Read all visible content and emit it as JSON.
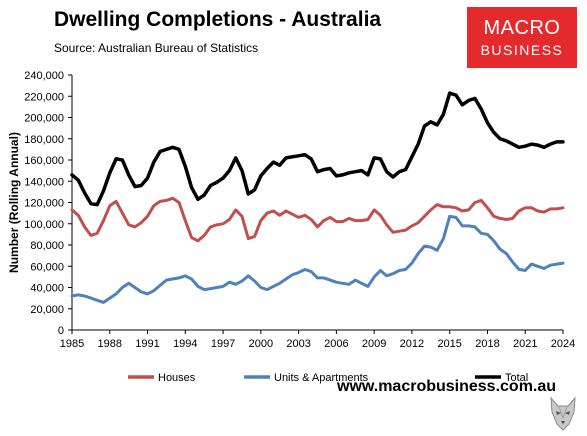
{
  "header": {
    "title": "Dwelling Completions - Australia",
    "subtitle": "Source: Australian Bureau of Statistics"
  },
  "logo": {
    "line1": "MACRO",
    "line2": "BUSINESS"
  },
  "footer": {
    "website": "www.macrobusiness.com.au"
  },
  "chart_data": {
    "type": "line",
    "title": "Dwelling Completions - Australia",
    "ylabel": "Number (Rolling Annual)",
    "xlabel": "",
    "xlim": [
      1985,
      2024
    ],
    "ylim": [
      0,
      240000
    ],
    "x_ticks": [
      1985,
      1988,
      1991,
      1994,
      1997,
      2000,
      2003,
      2006,
      2009,
      2012,
      2015,
      2018,
      2021,
      2024
    ],
    "y_ticks": [
      0,
      20000,
      40000,
      60000,
      80000,
      100000,
      120000,
      140000,
      160000,
      180000,
      200000,
      220000,
      240000
    ],
    "y_tick_labels": [
      "0",
      "20,000",
      "40,000",
      "60,000",
      "80,000",
      "100,000",
      "120,000",
      "140,000",
      "160,000",
      "180,000",
      "200,000",
      "220,000",
      "240,000"
    ],
    "grid": false,
    "legend_position": "bottom",
    "series": [
      {
        "name": "Houses",
        "color": "#c0504d",
        "x": [
          1985,
          1985.5,
          1986,
          1986.5,
          1987,
          1987.5,
          1988,
          1988.5,
          1989,
          1989.5,
          1990,
          1990.5,
          1991,
          1991.5,
          1992,
          1992.5,
          1993,
          1993.5,
          1994,
          1994.5,
          1995,
          1995.5,
          1996,
          1996.5,
          1997,
          1997.5,
          1998,
          1998.5,
          1999,
          1999.5,
          2000,
          2000.5,
          2001,
          2001.5,
          2002,
          2002.5,
          2003,
          2003.5,
          2004,
          2004.5,
          2005,
          2005.5,
          2006,
          2006.5,
          2007,
          2007.5,
          2008,
          2008.5,
          2009,
          2009.5,
          2010,
          2010.5,
          2011,
          2011.5,
          2012,
          2012.5,
          2013,
          2013.5,
          2014,
          2014.5,
          2015,
          2015.5,
          2016,
          2016.5,
          2017,
          2017.5,
          2018,
          2018.5,
          2019,
          2019.5,
          2020,
          2020.5,
          2021,
          2021.5,
          2022,
          2022.5,
          2023,
          2023.5,
          2024
        ],
        "values": [
          113000,
          108000,
          97000,
          89000,
          91000,
          103000,
          117000,
          121000,
          110000,
          99000,
          97000,
          101000,
          107000,
          117000,
          121000,
          122000,
          124000,
          120000,
          103000,
          87000,
          84000,
          89000,
          97000,
          99000,
          100000,
          104000,
          113000,
          107000,
          86000,
          88000,
          103000,
          110000,
          112000,
          108000,
          112000,
          109000,
          106000,
          108000,
          104000,
          97000,
          103000,
          106000,
          102000,
          102000,
          105000,
          103000,
          103000,
          104000,
          113000,
          108000,
          99000,
          92000,
          93000,
          94000,
          98000,
          101000,
          107000,
          113000,
          118000,
          116000,
          116000,
          115000,
          112000,
          113000,
          120000,
          122000,
          115000,
          107000,
          105000,
          104000,
          105000,
          112000,
          115000,
          115000,
          112000,
          111000,
          114000,
          114000,
          115000
        ]
      },
      {
        "name": "Units & Apartments",
        "color": "#4f81bd",
        "x": [
          1985,
          1985.5,
          1986,
          1986.5,
          1987,
          1987.5,
          1988,
          1988.5,
          1989,
          1989.5,
          1990,
          1990.5,
          1991,
          1991.5,
          1992,
          1992.5,
          1993,
          1993.5,
          1994,
          1994.5,
          1995,
          1995.5,
          1996,
          1996.5,
          1997,
          1997.5,
          1998,
          1998.5,
          1999,
          1999.5,
          2000,
          2000.5,
          2001,
          2001.5,
          2002,
          2002.5,
          2003,
          2003.5,
          2004,
          2004.5,
          2005,
          2005.5,
          2006,
          2006.5,
          2007,
          2007.5,
          2008,
          2008.5,
          2009,
          2009.5,
          2010,
          2010.5,
          2011,
          2011.5,
          2012,
          2012.5,
          2013,
          2013.5,
          2014,
          2014.5,
          2015,
          2015.5,
          2016,
          2016.5,
          2017,
          2017.5,
          2018,
          2018.5,
          2019,
          2019.5,
          2020,
          2020.5,
          2021,
          2021.5,
          2022,
          2022.5,
          2023,
          2023.5,
          2024
        ],
        "values": [
          32000,
          33000,
          32000,
          30000,
          28000,
          26000,
          30000,
          34000,
          40000,
          44000,
          40000,
          36000,
          34000,
          37000,
          42000,
          47000,
          48000,
          49000,
          51000,
          48000,
          41000,
          38000,
          39000,
          40000,
          41000,
          45000,
          43000,
          46000,
          51000,
          46000,
          40000,
          38000,
          41000,
          44000,
          48000,
          52000,
          54000,
          57000,
          55000,
          49000,
          49000,
          47000,
          45000,
          44000,
          43000,
          47000,
          44000,
          41000,
          50000,
          56000,
          51000,
          53000,
          56000,
          57000,
          63000,
          72000,
          79000,
          78000,
          75000,
          86000,
          107000,
          106000,
          98000,
          98000,
          97000,
          91000,
          90000,
          84000,
          76000,
          72000,
          64000,
          57000,
          56000,
          62000,
          60000,
          58000,
          61000,
          62000,
          63000
        ]
      },
      {
        "name": "Total",
        "color": "#000000",
        "x": [
          1985,
          1985.5,
          1986,
          1986.5,
          1987,
          1987.5,
          1988,
          1988.5,
          1989,
          1989.5,
          1990,
          1990.5,
          1991,
          1991.5,
          1992,
          1992.5,
          1993,
          1993.5,
          1994,
          1994.5,
          1995,
          1995.5,
          1996,
          1996.5,
          1997,
          1997.5,
          1998,
          1998.5,
          1999,
          1999.5,
          2000,
          2000.5,
          2001,
          2001.5,
          2002,
          2002.5,
          2003,
          2003.5,
          2004,
          2004.5,
          2005,
          2005.5,
          2006,
          2006.5,
          2007,
          2007.5,
          2008,
          2008.5,
          2009,
          2009.5,
          2010,
          2010.5,
          2011,
          2011.5,
          2012,
          2012.5,
          2013,
          2013.5,
          2014,
          2014.5,
          2015,
          2015.5,
          2016,
          2016.5,
          2017,
          2017.5,
          2018,
          2018.5,
          2019,
          2019.5,
          2020,
          2020.5,
          2021,
          2021.5,
          2022,
          2022.5,
          2023,
          2023.5,
          2024
        ],
        "values": [
          146000,
          141000,
          129000,
          119000,
          118000,
          131000,
          148000,
          161000,
          160000,
          146000,
          135000,
          136000,
          143000,
          158000,
          168000,
          170000,
          172000,
          170000,
          154000,
          134000,
          123000,
          127000,
          136000,
          139000,
          143000,
          150000,
          162000,
          150000,
          128000,
          132000,
          145000,
          152000,
          158000,
          155000,
          162000,
          163000,
          164000,
          165000,
          161000,
          149000,
          151000,
          152000,
          145000,
          146000,
          148000,
          149000,
          150000,
          146000,
          162000,
          161000,
          149000,
          144000,
          149000,
          151000,
          163000,
          175000,
          192000,
          196000,
          193000,
          203000,
          223000,
          221000,
          212000,
          216000,
          218000,
          208000,
          195000,
          186000,
          180000,
          178000,
          175000,
          172000,
          173000,
          175000,
          174000,
          172000,
          175000,
          177000,
          177000
        ]
      }
    ]
  }
}
